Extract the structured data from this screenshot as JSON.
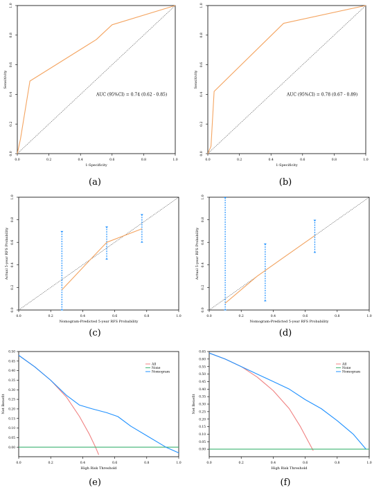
{
  "chart_data": [
    {
      "id": "a",
      "caption": "(a)",
      "type": "line",
      "xlabel": "1-Specificity",
      "ylabel": "Sensitivity",
      "xlim": [
        0,
        1
      ],
      "ylim": [
        0,
        1
      ],
      "xticks": [
        "0.0",
        "0.2",
        "0.4",
        "0.6",
        "0.8",
        "1.0"
      ],
      "yticks": [
        "0.0",
        "0.2",
        "0.4",
        "0.6",
        "0.8",
        "1.0"
      ],
      "annotation": "AUC (95%CI) = 0.74 (0.62 - 0.85)",
      "reference_line": "diagonal",
      "series": [
        {
          "color": "#f4a460",
          "x": [
            0,
            0.02,
            0.08,
            0.5,
            0.6,
            1.0
          ],
          "y": [
            0,
            0.1,
            0.49,
            0.77,
            0.87,
            1.0
          ]
        }
      ]
    },
    {
      "id": "b",
      "caption": "(b)",
      "type": "line",
      "xlabel": "1-Specificity",
      "ylabel": "Sensitivity",
      "xlim": [
        0,
        1
      ],
      "ylim": [
        0,
        1
      ],
      "xticks": [
        "0.0",
        "0.2",
        "0.4",
        "0.6",
        "0.8",
        "1.0"
      ],
      "yticks": [
        "0.0",
        "0.2",
        "0.4",
        "0.6",
        "0.8",
        "1.0"
      ],
      "annotation": "AUC (95%CI) = 0.78 (0.67 - 0.89)",
      "reference_line": "diagonal",
      "series": [
        {
          "color": "#f4a460",
          "x": [
            0,
            0.02,
            0.04,
            0.48,
            1.0
          ],
          "y": [
            0,
            0.05,
            0.42,
            0.88,
            1.0
          ]
        }
      ]
    },
    {
      "id": "c",
      "caption": "(c)",
      "type": "line",
      "xlabel": "Nomogram-Predicted 5-year RFS Probability",
      "ylabel": "Actual 5-year RFS Probability",
      "xlim": [
        0,
        1
      ],
      "ylim": [
        0,
        1
      ],
      "xticks": [
        "0.0",
        "0.2",
        "0.4",
        "0.6",
        "0.8",
        "1.0"
      ],
      "yticks": [
        "0.0",
        "0.2",
        "0.4",
        "0.6",
        "0.8",
        "1.0"
      ],
      "reference_line": "diagonal",
      "series": [
        {
          "color": "#f4a460",
          "x": [
            0.27,
            0.45,
            0.55,
            0.77
          ],
          "y": [
            0.18,
            0.45,
            0.6,
            0.72
          ]
        }
      ],
      "error_bars": {
        "color": "#1e90ff",
        "points": [
          {
            "x": 0.27,
            "lo": 0.0,
            "hi": 0.7
          },
          {
            "x": 0.55,
            "lo": 0.45,
            "hi": 0.74
          },
          {
            "x": 0.77,
            "lo": 0.6,
            "hi": 0.85
          }
        ]
      }
    },
    {
      "id": "d",
      "caption": "(d)",
      "type": "line",
      "xlabel": "Nomogram-Predicted 5-year RFS Probability",
      "ylabel": "Actual 5-year RFS Probability",
      "xlim": [
        0,
        1
      ],
      "ylim": [
        0,
        1
      ],
      "xticks": [
        "0.0",
        "0.2",
        "0.4",
        "0.6",
        "0.8",
        "1.0"
      ],
      "yticks": [
        "0.0",
        "0.2",
        "0.4",
        "0.6",
        "0.8",
        "1.0"
      ],
      "reference_line": "diagonal",
      "series": [
        {
          "color": "#f4a460",
          "x": [
            0.1,
            0.3,
            0.45,
            0.66
          ],
          "y": [
            0.06,
            0.3,
            0.45,
            0.66
          ]
        }
      ],
      "error_bars": {
        "color": "#1e90ff",
        "points": [
          {
            "x": 0.1,
            "lo": 0.0,
            "hi": 1.0
          },
          {
            "x": 0.35,
            "lo": 0.08,
            "hi": 0.59
          },
          {
            "x": 0.66,
            "lo": 0.51,
            "hi": 0.8
          }
        ]
      }
    },
    {
      "id": "e",
      "caption": "(e)",
      "type": "line",
      "xlabel": "High Risk Threshold",
      "ylabel": "Net Benefit",
      "xlim": [
        0,
        1
      ],
      "ylim": [
        -0.05,
        0.5
      ],
      "xticks": [
        "0.0",
        "0.2",
        "0.4",
        "0.6",
        "0.8",
        "1.0"
      ],
      "ytick_values": [
        0.0,
        0.05,
        0.1,
        0.15,
        0.2,
        0.25,
        0.3,
        0.35,
        0.4,
        0.45,
        0.5
      ],
      "yticks": [
        "0.00",
        "0.05",
        "0.10",
        "0.15",
        "0.20",
        "0.25",
        "0.30",
        "0.35",
        "0.40",
        "0.45",
        "0.50"
      ],
      "legend": {
        "position": "top-right",
        "entries": [
          "All",
          "None",
          "Nomogram"
        ]
      },
      "series": [
        {
          "name": "All",
          "color": "#f08080",
          "x": [
            0,
            0.1,
            0.2,
            0.3,
            0.38,
            0.44,
            0.48,
            0.5
          ],
          "y": [
            0.48,
            0.42,
            0.35,
            0.26,
            0.16,
            0.07,
            0.0,
            -0.04
          ]
        },
        {
          "name": "None",
          "color": "#3cb371",
          "x": [
            0,
            1.0
          ],
          "y": [
            0,
            0
          ]
        },
        {
          "name": "Nomogram",
          "color": "#1e90ff",
          "x": [
            0,
            0.1,
            0.2,
            0.3,
            0.38,
            0.46,
            0.55,
            0.62,
            0.7,
            0.8,
            0.92,
            1.0
          ],
          "y": [
            0.48,
            0.42,
            0.35,
            0.27,
            0.22,
            0.2,
            0.18,
            0.16,
            0.11,
            0.06,
            0.0,
            -0.03
          ]
        }
      ]
    },
    {
      "id": "f",
      "caption": "(f)",
      "type": "line",
      "xlabel": "High Risk Threshold",
      "ylabel": "Net Benefit",
      "xlim": [
        0,
        1
      ],
      "ylim": [
        -0.05,
        0.65
      ],
      "xticks": [
        "0.0",
        "0.2",
        "0.4",
        "0.6",
        "0.8",
        "1.0"
      ],
      "ytick_values": [
        0.0,
        0.05,
        0.1,
        0.15,
        0.2,
        0.25,
        0.3,
        0.35,
        0.4,
        0.45,
        0.5,
        0.55,
        0.6,
        0.65
      ],
      "yticks": [
        "0.00",
        "0.05",
        "0.10",
        "0.15",
        "0.20",
        "0.25",
        "0.30",
        "0.35",
        "0.40",
        "0.45",
        "0.50",
        "0.55",
        "0.60",
        "0.65"
      ],
      "legend": {
        "position": "top-right",
        "entries": [
          "All",
          "None",
          "Nomogram"
        ]
      },
      "series": [
        {
          "name": "All",
          "color": "#f08080",
          "x": [
            0,
            0.1,
            0.2,
            0.3,
            0.4,
            0.5,
            0.57,
            0.62,
            0.65
          ],
          "y": [
            0.64,
            0.6,
            0.55,
            0.48,
            0.39,
            0.27,
            0.15,
            0.05,
            -0.01
          ]
        },
        {
          "name": "None",
          "color": "#3cb371",
          "x": [
            0,
            1.0
          ],
          "y": [
            0,
            0
          ]
        },
        {
          "name": "Nomogram",
          "color": "#1e90ff",
          "x": [
            0,
            0.1,
            0.2,
            0.3,
            0.4,
            0.5,
            0.6,
            0.7,
            0.8,
            0.9,
            0.98
          ],
          "y": [
            0.64,
            0.6,
            0.55,
            0.5,
            0.45,
            0.4,
            0.33,
            0.27,
            0.19,
            0.1,
            0.0
          ]
        }
      ]
    }
  ]
}
